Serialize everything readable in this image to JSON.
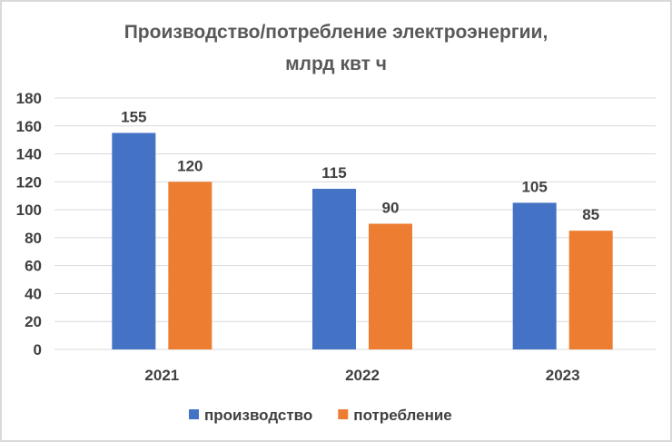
{
  "chart_data": {
    "type": "bar",
    "title_lines": [
      "Производство/потребление  электроэнергии,",
      "млрд квт ч"
    ],
    "categories": [
      "2021",
      "2022",
      "2023"
    ],
    "series": [
      {
        "name": "производство",
        "values": [
          155,
          115,
          105
        ],
        "color": "#4472C4"
      },
      {
        "name": "потребление",
        "values": [
          120,
          90,
          85
        ],
        "color": "#ED7D31"
      }
    ],
    "yticks": [
      "0",
      "20",
      "40",
      "60",
      "80",
      "100",
      "120",
      "140",
      "160",
      "180"
    ],
    "ylim": [
      0,
      180
    ],
    "grid": true,
    "legend": "bottom",
    "data_labels": true
  }
}
